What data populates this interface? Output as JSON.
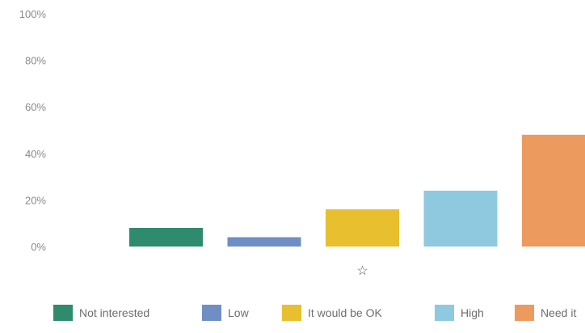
{
  "chart_data": {
    "type": "bar",
    "title": "",
    "xlabel": "",
    "ylabel": "",
    "ylim": [
      0,
      100
    ],
    "y_ticks": [
      "100%",
      "80%",
      "60%",
      "40%",
      "20%",
      "0%"
    ],
    "y_tick_values": [
      100,
      80,
      60,
      40,
      20,
      0
    ],
    "categories": [
      "Not interested",
      "Low",
      "It would be OK",
      "High",
      "Need it"
    ],
    "values": [
      8,
      4,
      16,
      24,
      48
    ],
    "colors": [
      "#2e8b6e",
      "#6f8fc4",
      "#e8bf2e",
      "#8ec9e0",
      "#ec9a5e"
    ],
    "grid": false,
    "legend_position": "bottom",
    "annotation": {
      "text": "☆",
      "category": "It would be OK"
    }
  }
}
